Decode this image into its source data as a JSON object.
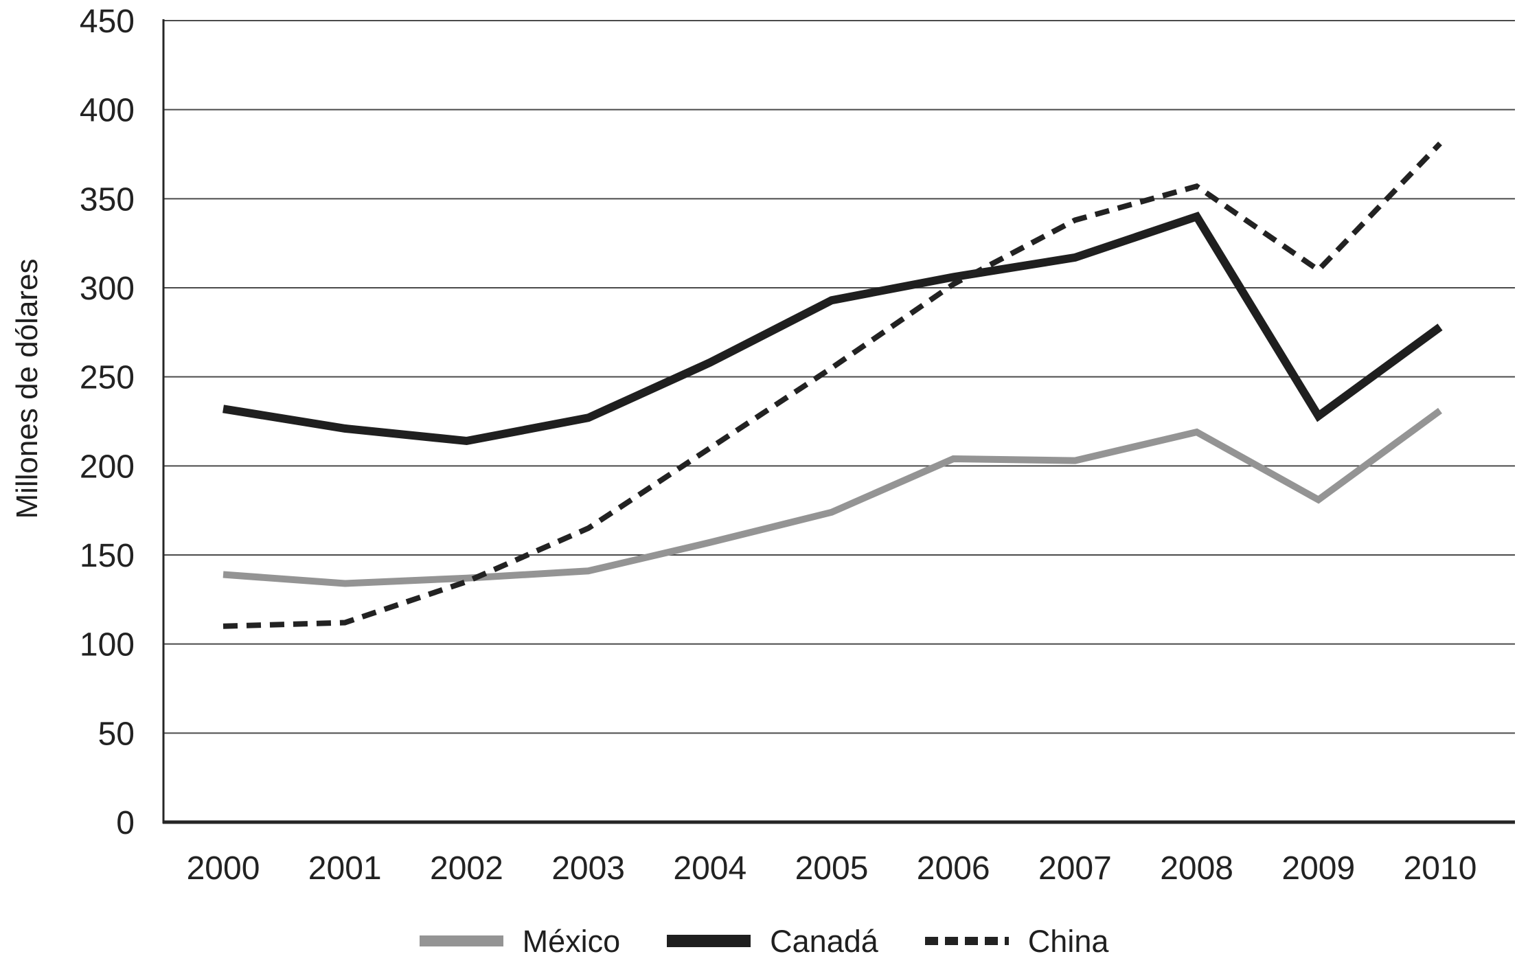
{
  "figure": {
    "background": "#ffffff",
    "text_color": "#222222",
    "grid_color": "#4a4a4a",
    "axis_color": "#262626"
  },
  "chart_data": {
    "type": "line",
    "title": "",
    "xlabel": "",
    "ylabel": "Millones de dólares",
    "categories": [
      "2000",
      "2001",
      "2002",
      "2003",
      "2004",
      "2005",
      "2006",
      "2007",
      "2008",
      "2009",
      "2010"
    ],
    "y_ticks": [
      0,
      50,
      100,
      150,
      200,
      250,
      300,
      350,
      400,
      450
    ],
    "ylim": [
      0,
      450
    ],
    "grid": "horizontal",
    "legend_position": "bottom-center",
    "series": [
      {
        "name": "México",
        "color": "#949494",
        "style": "solid",
        "stroke_width": 10,
        "values": [
          139,
          134,
          137,
          141,
          157,
          174,
          204,
          203,
          219,
          181,
          231
        ]
      },
      {
        "name": "Canadá",
        "color": "#1f1f1f",
        "style": "solid",
        "stroke_width": 12,
        "values": [
          232,
          221,
          214,
          227,
          258,
          293,
          306,
          317,
          340,
          228,
          278
        ]
      },
      {
        "name": "China",
        "color": "#222222",
        "style": "dashed",
        "stroke_width": 8,
        "dash": "21 13",
        "values": [
          110,
          112,
          135,
          165,
          210,
          255,
          302,
          338,
          357,
          310,
          381
        ]
      }
    ]
  }
}
